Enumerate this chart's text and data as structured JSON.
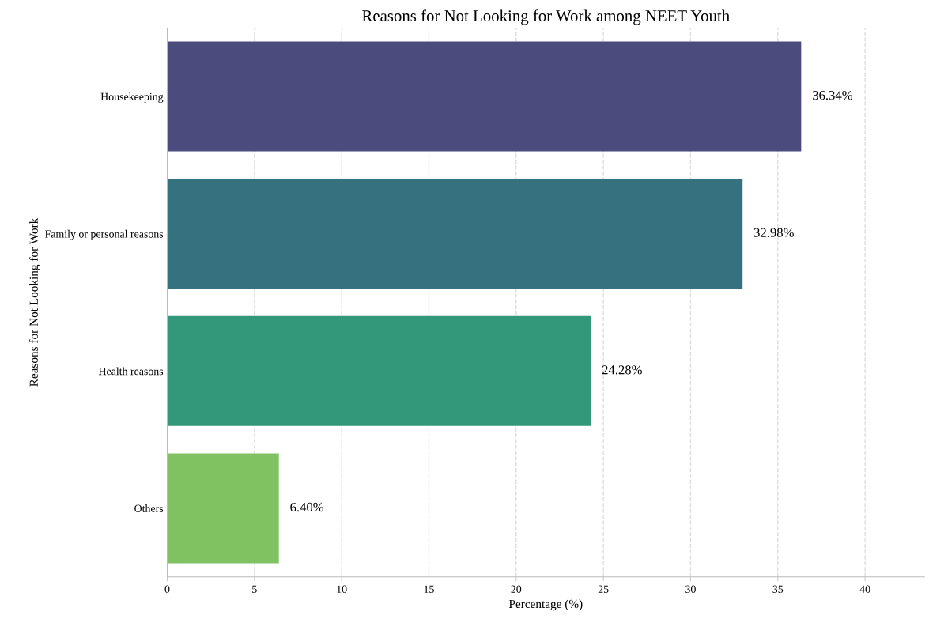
{
  "chart_data": {
    "type": "bar",
    "orientation": "horizontal",
    "title": "Reasons for Not Looking for Work among NEET Youth",
    "xlabel": "Percentage (%)",
    "ylabel": "Reasons for Not Looking for Work",
    "categories": [
      "Housekeeping",
      "Family or personal reasons",
      "Health reasons",
      "Others"
    ],
    "values": [
      36.34,
      32.98,
      24.28,
      6.4
    ],
    "colors": [
      "#4b4b7d",
      "#35717f",
      "#33987a",
      "#80c262"
    ],
    "value_labels": [
      "36.34%",
      "32.98%",
      "24.28%",
      "6.40%"
    ],
    "xlim": [
      0,
      43.4
    ],
    "xticks": [
      0,
      5,
      10,
      15,
      20,
      25,
      30,
      35,
      40
    ],
    "grid": "x"
  }
}
